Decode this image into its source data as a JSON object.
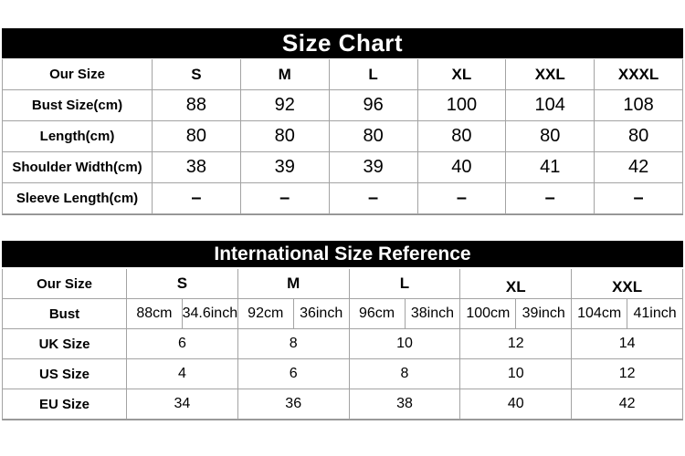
{
  "colors": {
    "background": "#ffffff",
    "title_bar_background": "#000000",
    "title_bar_text": "#ffffff",
    "grid_border": "#a3a3a3",
    "table_text": "#000000"
  },
  "size_chart": {
    "title": "Size Chart",
    "header": {
      "label": "Our Size",
      "sizes": [
        "S",
        "M",
        "L",
        "XL",
        "XXL",
        "XXXL"
      ]
    },
    "rows": [
      {
        "label": "Bust Size(cm)",
        "values": [
          "88",
          "92",
          "96",
          "100",
          "104",
          "108"
        ]
      },
      {
        "label": "Length(cm)",
        "values": [
          "80",
          "80",
          "80",
          "80",
          "80",
          "80"
        ]
      },
      {
        "label": "Shoulder Width(cm)",
        "values": [
          "38",
          "39",
          "39",
          "40",
          "41",
          "42"
        ]
      },
      {
        "label": "Sleeve Length(cm)",
        "values": [
          "–",
          "–",
          "–",
          "–",
          "–",
          "–"
        ]
      }
    ]
  },
  "international_reference": {
    "title": "International Size Reference",
    "header": {
      "label": "Our Size",
      "sizes": [
        "S",
        "M",
        "L",
        "XL",
        "XXL"
      ]
    },
    "bust": {
      "label": "Bust",
      "pairs": [
        [
          "88cm",
          "34.6inch"
        ],
        [
          "92cm",
          "36inch"
        ],
        [
          "96cm",
          "38inch"
        ],
        [
          "100cm",
          "39inch"
        ],
        [
          "104cm",
          "41inch"
        ]
      ]
    },
    "rows": [
      {
        "label": "UK Size",
        "values": [
          "6",
          "8",
          "10",
          "12",
          "14"
        ]
      },
      {
        "label": "US Size",
        "values": [
          "4",
          "6",
          "8",
          "10",
          "12"
        ]
      },
      {
        "label": "EU Size",
        "values": [
          "34",
          "36",
          "38",
          "40",
          "42"
        ]
      }
    ]
  },
  "chart_data": [
    {
      "type": "table",
      "title": "Size Chart",
      "columns": [
        "Our Size",
        "S",
        "M",
        "L",
        "XL",
        "XXL",
        "XXXL"
      ],
      "rows": [
        [
          "Bust Size(cm)",
          88,
          92,
          96,
          100,
          104,
          108
        ],
        [
          "Length(cm)",
          80,
          80,
          80,
          80,
          80,
          80
        ],
        [
          "Shoulder Width(cm)",
          38,
          39,
          39,
          40,
          41,
          42
        ],
        [
          "Sleeve Length(cm)",
          "–",
          "–",
          "–",
          "–",
          "–",
          "–"
        ]
      ]
    },
    {
      "type": "table",
      "title": "International Size Reference",
      "columns": [
        "Our Size",
        "S",
        "M",
        "L",
        "XL",
        "XXL"
      ],
      "rows": [
        [
          "Bust",
          "88cm / 34.6inch",
          "92cm / 36inch",
          "96cm / 38inch",
          "100cm / 39inch",
          "104cm / 41inch"
        ],
        [
          "UK Size",
          6,
          8,
          10,
          12,
          14
        ],
        [
          "US Size",
          4,
          6,
          8,
          10,
          12
        ],
        [
          "EU Size",
          34,
          36,
          38,
          40,
          42
        ]
      ]
    }
  ]
}
